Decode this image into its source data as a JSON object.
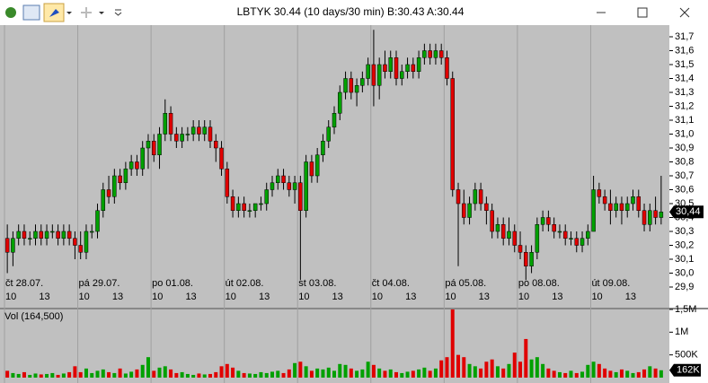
{
  "window": {
    "title": "LBTYK 30.44 (10 days/30 min) B:30.43 A:30.44"
  },
  "chart_data": {
    "type": "candlestick",
    "up_color": "#00a000",
    "down_color": "#e00000",
    "day_labels": [
      "čt 28.07.",
      "pá 29.07.",
      "po 01.08.",
      "út 02.08.",
      "st 03.08.",
      "čt 04.08.",
      "pá 05.08.",
      "po 08.08.",
      "út 09.08."
    ],
    "hour_labels": [
      "10",
      "13"
    ],
    "ylim": [
      29.9,
      31.7
    ],
    "yticks": [
      {
        "value": 31.7,
        "label": "31,7"
      },
      {
        "value": 31.6,
        "label": "31,6"
      },
      {
        "value": 31.5,
        "label": "31,5"
      },
      {
        "value": 31.4,
        "label": "31,4"
      },
      {
        "value": 31.3,
        "label": "31,3"
      },
      {
        "value": 31.2,
        "label": "31,2"
      },
      {
        "value": 31.1,
        "label": "31,1"
      },
      {
        "value": 31.0,
        "label": "31,0"
      },
      {
        "value": 30.9,
        "label": "30,9"
      },
      {
        "value": 30.8,
        "label": "30,8"
      },
      {
        "value": 30.7,
        "label": "30,7"
      },
      {
        "value": 30.6,
        "label": "30,6"
      },
      {
        "value": 30.5,
        "label": "30,5"
      },
      {
        "value": 30.4,
        "label": "30,4"
      },
      {
        "value": 30.3,
        "label": "30,3"
      },
      {
        "value": 30.2,
        "label": "30,2"
      },
      {
        "value": 30.1,
        "label": "30,1"
      },
      {
        "value": 30.0,
        "label": "30,0"
      },
      {
        "value": 29.9,
        "label": "29,9"
      }
    ],
    "current_price": {
      "value": 30.44,
      "label": "30,44"
    },
    "ohlc": [
      [
        30.25,
        30.35,
        30.0,
        30.15
      ],
      [
        30.15,
        30.3,
        30.05,
        30.25
      ],
      [
        30.25,
        30.35,
        30.2,
        30.3
      ],
      [
        30.3,
        30.35,
        30.2,
        30.25
      ],
      [
        30.25,
        30.3,
        30.2,
        30.25
      ],
      [
        30.25,
        30.35,
        30.2,
        30.3
      ],
      [
        30.3,
        30.35,
        30.2,
        30.25
      ],
      [
        30.25,
        30.35,
        30.2,
        30.3
      ],
      [
        30.3,
        30.35,
        30.25,
        30.3
      ],
      [
        30.3,
        30.35,
        30.2,
        30.25
      ],
      [
        30.25,
        30.35,
        30.2,
        30.3
      ],
      [
        30.3,
        30.35,
        30.2,
        30.25
      ],
      [
        30.25,
        30.3,
        30.1,
        30.2
      ],
      [
        30.2,
        30.3,
        30.1,
        30.15
      ],
      [
        30.15,
        30.35,
        30.1,
        30.3
      ],
      [
        30.3,
        30.35,
        30.25,
        30.3
      ],
      [
        30.3,
        30.5,
        30.25,
        30.45
      ],
      [
        30.45,
        30.65,
        30.4,
        30.6
      ],
      [
        30.6,
        30.7,
        30.5,
        30.55
      ],
      [
        30.55,
        30.75,
        30.5,
        30.7
      ],
      [
        30.7,
        30.75,
        30.6,
        30.65
      ],
      [
        30.65,
        30.8,
        30.6,
        30.75
      ],
      [
        30.75,
        30.85,
        30.7,
        30.8
      ],
      [
        30.8,
        30.85,
        30.7,
        30.75
      ],
      [
        30.75,
        30.95,
        30.7,
        30.9
      ],
      [
        30.9,
        31.0,
        30.75,
        30.95
      ],
      [
        30.95,
        31.0,
        30.8,
        30.85
      ],
      [
        30.85,
        31.05,
        30.75,
        31.0
      ],
      [
        31.0,
        31.25,
        30.95,
        31.15
      ],
      [
        31.15,
        31.2,
        30.95,
        31.0
      ],
      [
        31.0,
        31.05,
        30.9,
        30.95
      ],
      [
        30.95,
        31.05,
        30.9,
        31.0
      ],
      [
        31.0,
        31.05,
        30.95,
        31.0
      ],
      [
        31.0,
        31.1,
        30.95,
        31.05
      ],
      [
        31.05,
        31.1,
        30.95,
        31.0
      ],
      [
        31.0,
        31.1,
        30.95,
        31.05
      ],
      [
        31.05,
        31.1,
        30.9,
        30.95
      ],
      [
        30.95,
        31.0,
        30.8,
        30.9
      ],
      [
        30.9,
        30.95,
        30.7,
        30.75
      ],
      [
        30.75,
        30.8,
        30.5,
        30.55
      ],
      [
        30.55,
        30.6,
        30.4,
        30.45
      ],
      [
        30.45,
        30.55,
        30.4,
        30.5
      ],
      [
        30.5,
        30.55,
        30.4,
        30.45
      ],
      [
        30.45,
        30.5,
        30.4,
        30.45
      ],
      [
        30.45,
        30.5,
        30.4,
        30.5
      ],
      [
        30.5,
        30.55,
        30.45,
        30.5
      ],
      [
        30.5,
        30.65,
        30.45,
        30.6
      ],
      [
        30.6,
        30.7,
        30.55,
        30.65
      ],
      [
        30.65,
        30.75,
        30.6,
        30.7
      ],
      [
        30.7,
        30.75,
        30.6,
        30.65
      ],
      [
        30.65,
        30.7,
        30.55,
        30.6
      ],
      [
        30.6,
        30.7,
        30.5,
        30.65
      ],
      [
        30.65,
        30.7,
        29.95,
        30.45
      ],
      [
        30.45,
        30.85,
        30.4,
        30.8
      ],
      [
        30.8,
        30.85,
        30.65,
        30.7
      ],
      [
        30.7,
        30.9,
        30.65,
        30.85
      ],
      [
        30.85,
        31.0,
        30.8,
        30.95
      ],
      [
        30.95,
        31.1,
        30.9,
        31.05
      ],
      [
        31.05,
        31.2,
        31.0,
        31.15
      ],
      [
        31.15,
        31.35,
        31.1,
        31.3
      ],
      [
        31.3,
        31.45,
        31.25,
        31.4
      ],
      [
        31.4,
        31.45,
        31.25,
        31.3
      ],
      [
        31.3,
        31.4,
        31.2,
        31.35
      ],
      [
        31.35,
        31.45,
        31.3,
        31.4
      ],
      [
        31.4,
        31.55,
        31.35,
        31.5
      ],
      [
        31.5,
        31.75,
        31.2,
        31.35
      ],
      [
        31.35,
        31.55,
        31.25,
        31.5
      ],
      [
        31.5,
        31.6,
        31.4,
        31.45
      ],
      [
        31.45,
        31.6,
        31.4,
        31.55
      ],
      [
        31.55,
        31.6,
        31.35,
        31.4
      ],
      [
        31.4,
        31.5,
        31.35,
        31.45
      ],
      [
        31.45,
        31.55,
        31.4,
        31.5
      ],
      [
        31.5,
        31.55,
        31.4,
        31.45
      ],
      [
        31.45,
        31.6,
        31.4,
        31.55
      ],
      [
        31.55,
        31.65,
        31.5,
        31.6
      ],
      [
        31.6,
        31.65,
        31.5,
        31.55
      ],
      [
        31.55,
        31.65,
        31.5,
        31.6
      ],
      [
        31.6,
        31.65,
        31.5,
        31.55
      ],
      [
        31.55,
        31.6,
        31.35,
        31.4
      ],
      [
        31.4,
        31.45,
        30.55,
        30.6
      ],
      [
        30.6,
        30.65,
        30.05,
        30.5
      ],
      [
        30.5,
        30.6,
        30.35,
        30.4
      ],
      [
        30.4,
        30.55,
        30.35,
        30.5
      ],
      [
        30.5,
        30.65,
        30.45,
        30.6
      ],
      [
        30.6,
        30.65,
        30.45,
        30.5
      ],
      [
        30.5,
        30.55,
        30.35,
        30.45
      ],
      [
        30.45,
        30.5,
        30.25,
        30.3
      ],
      [
        30.3,
        30.4,
        30.25,
        30.35
      ],
      [
        30.35,
        30.4,
        30.2,
        30.25
      ],
      [
        30.25,
        30.4,
        30.2,
        30.3
      ],
      [
        30.3,
        30.35,
        30.15,
        30.2
      ],
      [
        30.2,
        30.3,
        30.1,
        30.15
      ],
      [
        30.15,
        30.2,
        29.95,
        30.05
      ],
      [
        30.05,
        30.2,
        30.0,
        30.15
      ],
      [
        30.15,
        30.4,
        30.1,
        30.35
      ],
      [
        30.35,
        30.45,
        30.3,
        30.4
      ],
      [
        30.4,
        30.45,
        30.3,
        30.35
      ],
      [
        30.35,
        30.4,
        30.25,
        30.3
      ],
      [
        30.3,
        30.35,
        30.25,
        30.3
      ],
      [
        30.3,
        30.35,
        30.2,
        30.25
      ],
      [
        30.25,
        30.3,
        30.2,
        30.25
      ],
      [
        30.25,
        30.3,
        30.15,
        30.2
      ],
      [
        30.2,
        30.3,
        30.15,
        30.25
      ],
      [
        30.25,
        30.35,
        30.2,
        30.3
      ],
      [
        30.3,
        30.7,
        30.3,
        30.6
      ],
      [
        30.6,
        30.65,
        30.5,
        30.55
      ],
      [
        30.55,
        30.6,
        30.45,
        30.5
      ],
      [
        30.5,
        30.6,
        30.35,
        30.45
      ],
      [
        30.45,
        30.55,
        30.4,
        30.5
      ],
      [
        30.5,
        30.55,
        30.35,
        30.45
      ],
      [
        30.45,
        30.55,
        30.4,
        30.5
      ],
      [
        30.5,
        30.6,
        30.45,
        30.55
      ],
      [
        30.55,
        30.6,
        30.4,
        30.45
      ],
      [
        30.45,
        30.5,
        30.3,
        30.35
      ],
      [
        30.35,
        30.5,
        30.3,
        30.45
      ],
      [
        30.45,
        30.55,
        30.35,
        30.4
      ],
      [
        30.4,
        30.7,
        30.35,
        30.44
      ]
    ],
    "volume_title": "Vol (164,500)",
    "y2lim": [
      0,
      1500000
    ],
    "y2ticks": [
      {
        "value": 1500000,
        "label": "1,5M"
      },
      {
        "value": 1000000,
        "label": "1M"
      },
      {
        "value": 500000,
        "label": "500K"
      }
    ],
    "current_volume": {
      "value": 162000,
      "label": "162K"
    },
    "volume": [
      150000,
      100000,
      80000,
      120000,
      60000,
      90000,
      70000,
      80000,
      100000,
      60000,
      90000,
      120000,
      250000,
      120000,
      200000,
      100000,
      150000,
      180000,
      120000,
      100000,
      200000,
      90000,
      130000,
      180000,
      280000,
      450000,
      150000,
      220000,
      250000,
      180000,
      100000,
      120000,
      80000,
      60000,
      90000,
      70000,
      80000,
      120000,
      250000,
      300000,
      220000,
      150000,
      100000,
      90000,
      80000,
      120000,
      100000,
      130000,
      150000,
      100000,
      180000,
      320000,
      350000,
      250000,
      150000,
      200000,
      180000,
      220000,
      150000,
      300000,
      280000,
      200000,
      150000,
      180000,
      350000,
      280000,
      200000,
      150000,
      180000,
      120000,
      100000,
      130000,
      150000,
      180000,
      220000,
      150000,
      200000,
      380000,
      450000,
      1500000,
      500000,
      450000,
      300000,
      250000,
      200000,
      350000,
      400000,
      250000,
      200000,
      300000,
      550000,
      350000,
      850000,
      400000,
      450000,
      300000,
      200000,
      150000,
      120000,
      100000,
      150000,
      100000,
      130000,
      280000,
      350000,
      300000,
      200000,
      150000,
      120000,
      180000,
      150000,
      100000,
      120000,
      180000,
      250000,
      200000,
      162000
    ]
  }
}
